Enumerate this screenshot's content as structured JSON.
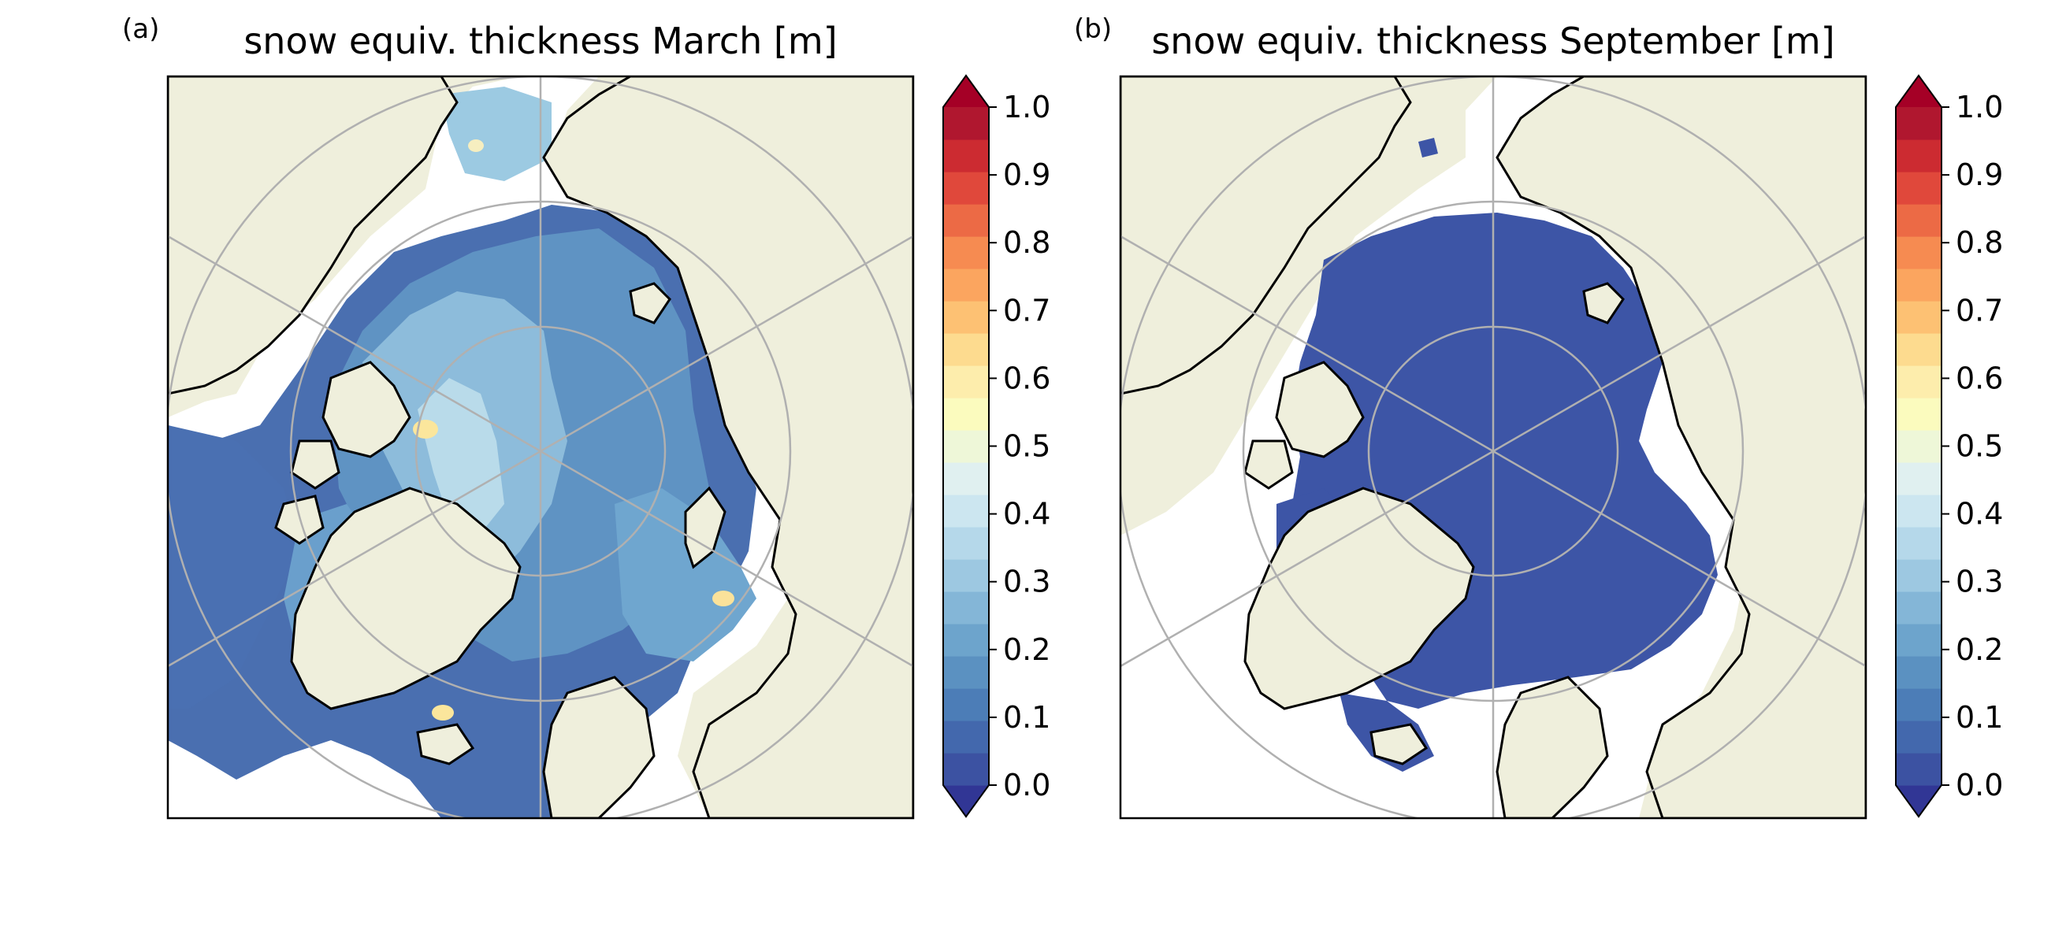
{
  "figure": {
    "panels": [
      {
        "id": "a",
        "letter": "(a)",
        "title": "snow equiv. thickness March [m]",
        "style": "march"
      },
      {
        "id": "b",
        "letter": "(b)",
        "title": "snow equiv. thickness September [m]",
        "style": "september"
      }
    ]
  },
  "colorbar": {
    "tick_labels": [
      "0.0",
      "0.1",
      "0.2",
      "0.3",
      "0.4",
      "0.5",
      "0.6",
      "0.7",
      "0.8",
      "0.9",
      "1.0"
    ],
    "range": [
      0.0,
      1.0
    ],
    "extend": "both",
    "colors": [
      "#3c52a2",
      "#4368ad",
      "#4c7db7",
      "#5b91c1",
      "#6da4cc",
      "#84b6d7",
      "#9dc8e1",
      "#b5d8ea",
      "#cce6f0",
      "#e0f0f0",
      "#eef7d8",
      "#fbfbbe",
      "#fdedac",
      "#fddb8f",
      "#fdc173",
      "#fba55f",
      "#f68b51",
      "#ec6a45",
      "#e0483b",
      "#cc2b31",
      "#b0172f"
    ],
    "under_color": "#313695",
    "over_color": "#a50026"
  },
  "map": {
    "projection": "north polar stereographic",
    "land_color": "#efefdc",
    "no_data_color": "#ffffff",
    "graticule_color": "#b0b0b0",
    "coastline_color": "#000000"
  }
}
